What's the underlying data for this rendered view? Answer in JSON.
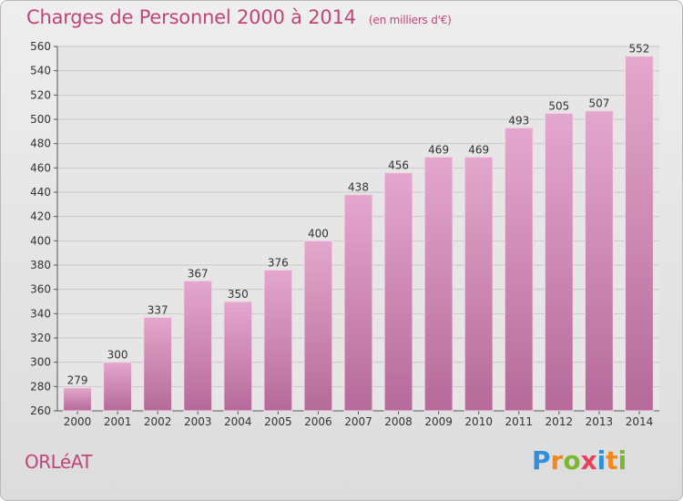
{
  "header": {
    "title": "Charges de Personnel 2000 à 2014",
    "unit": "(en milliers d'€)"
  },
  "footer": {
    "commune": "ORLéAT",
    "logo": {
      "letters": [
        "P",
        "r",
        "o",
        "x",
        "i",
        "t",
        "i"
      ],
      "colors": [
        "#2f8fd8",
        "#f08a1c",
        "#7cb82f",
        "#e83f5b",
        "#2f8fd8",
        "#f08a1c",
        "#7cb82f"
      ]
    }
  },
  "colors": {
    "bar_top": "#e4a7cd",
    "bar_bottom": "#b56a98",
    "accent": "#c0457a"
  },
  "chart_data": {
    "type": "bar",
    "title": "Charges de Personnel 2000 à 2014",
    "subtitle": "(en milliers d'€)",
    "xlabel": "",
    "ylabel": "",
    "categories": [
      "2000",
      "2001",
      "2002",
      "2003",
      "2004",
      "2005",
      "2006",
      "2007",
      "2008",
      "2009",
      "2010",
      "2011",
      "2012",
      "2013",
      "2014"
    ],
    "values": [
      279,
      300,
      337,
      367,
      350,
      376,
      400,
      438,
      456,
      469,
      469,
      493,
      505,
      507,
      552
    ],
    "ylim": [
      260,
      560
    ],
    "yticks": [
      260,
      280,
      300,
      320,
      340,
      360,
      380,
      400,
      420,
      440,
      460,
      480,
      500,
      520,
      540,
      560
    ],
    "grid": true
  }
}
